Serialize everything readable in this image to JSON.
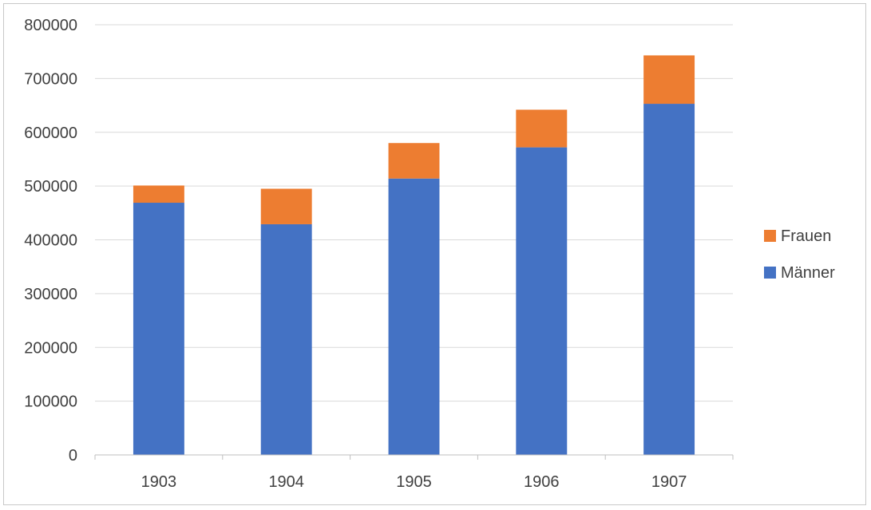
{
  "chart_data": {
    "type": "bar",
    "stacked": true,
    "categories": [
      "1903",
      "1904",
      "1905",
      "1906",
      "1907"
    ],
    "series": [
      {
        "name": "Männer",
        "values": [
          469000,
          429000,
          514000,
          572000,
          653000
        ],
        "color": "#4472C4"
      },
      {
        "name": "Frauen",
        "values": [
          32000,
          66000,
          66000,
          70000,
          90000
        ],
        "color": "#ED7D31"
      }
    ],
    "legend_order": [
      "Frauen",
      "Männer"
    ],
    "title": "",
    "xlabel": "",
    "ylabel": "",
    "ylim": [
      0,
      800000
    ],
    "yticks": [
      0,
      100000,
      200000,
      300000,
      400000,
      500000,
      600000,
      700000,
      800000
    ],
    "grid": true,
    "legend_position": "right"
  }
}
